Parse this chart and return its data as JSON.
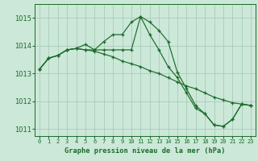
{
  "title": "Graphe pression niveau de la mer (hPa)",
  "bg_color": "#cce8d8",
  "grid_color": "#aaccbb",
  "line_color": "#1a6b2a",
  "x_labels": [
    "0",
    "1",
    "2",
    "3",
    "4",
    "5",
    "6",
    "7",
    "8",
    "9",
    "10",
    "11",
    "12",
    "13",
    "14",
    "15",
    "16",
    "17",
    "18",
    "19",
    "20",
    "21",
    "22",
    "23"
  ],
  "hours": [
    0,
    1,
    2,
    3,
    4,
    5,
    6,
    7,
    8,
    9,
    10,
    11,
    12,
    13,
    14,
    15,
    16,
    17,
    18,
    19,
    20,
    21,
    22,
    23
  ],
  "series1": [
    1013.15,
    1013.55,
    1013.65,
    1013.85,
    1013.9,
    1014.05,
    1013.85,
    1014.15,
    1014.4,
    1014.4,
    1014.85,
    1015.05,
    1014.85,
    1014.55,
    1014.15,
    1013.05,
    1012.45,
    1011.85,
    1011.55,
    1011.15,
    1011.1,
    1011.35,
    1011.9,
    1011.85
  ],
  "series2": [
    1013.15,
    1013.55,
    1013.65,
    1013.85,
    1013.9,
    1013.85,
    1013.85,
    1013.85,
    1013.85,
    1013.85,
    1013.85,
    1015.05,
    1014.4,
    1013.85,
    1013.25,
    1012.85,
    1012.3,
    1011.75,
    1011.55,
    1011.15,
    1011.1,
    1011.35,
    1011.9,
    1011.85
  ],
  "series3": [
    1013.15,
    1013.55,
    1013.65,
    1013.85,
    1013.9,
    1013.85,
    1013.8,
    1013.7,
    1013.6,
    1013.45,
    1013.35,
    1013.25,
    1013.1,
    1013.0,
    1012.85,
    1012.7,
    1012.55,
    1012.45,
    1012.3,
    1012.15,
    1012.05,
    1011.95,
    1011.9,
    1011.85
  ],
  "ylim": [
    1010.75,
    1015.5
  ],
  "yticks": [
    1011,
    1012,
    1013,
    1014,
    1015
  ]
}
